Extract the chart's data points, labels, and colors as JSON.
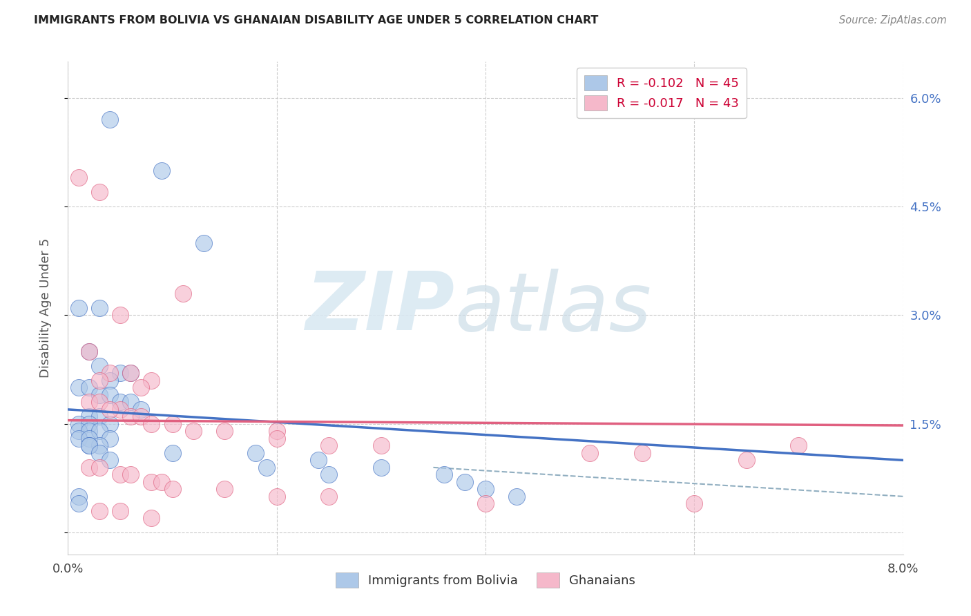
{
  "title": "IMMIGRANTS FROM BOLIVIA VS GHANAIAN DISABILITY AGE UNDER 5 CORRELATION CHART",
  "source": "Source: ZipAtlas.com",
  "ylabel": "Disability Age Under 5",
  "xlim": [
    0.0,
    0.08
  ],
  "ylim": [
    -0.003,
    0.065
  ],
  "xticks": [
    0.0,
    0.02,
    0.04,
    0.06,
    0.08
  ],
  "xticklabels": [
    "0.0%",
    "",
    "",
    "",
    "8.0%"
  ],
  "yticks_right": [
    0.0,
    0.015,
    0.03,
    0.045,
    0.06
  ],
  "yticklabels_right": [
    "",
    "1.5%",
    "3.0%",
    "4.5%",
    "6.0%"
  ],
  "legend_r1": "R = -0.102",
  "legend_n1": "N = 45",
  "legend_r2": "R = -0.017",
  "legend_n2": "N = 43",
  "color_bolivia": "#adc8e8",
  "color_ghana": "#f5b8ca",
  "color_bolivia_line": "#4472c4",
  "color_ghana_line": "#e06080",
  "color_dashed": "#90aec0",
  "background": "#ffffff",
  "bolivia_x": [
    0.004,
    0.009,
    0.013,
    0.001,
    0.003,
    0.002,
    0.003,
    0.005,
    0.006,
    0.004,
    0.001,
    0.002,
    0.003,
    0.004,
    0.005,
    0.006,
    0.007,
    0.002,
    0.003,
    0.004,
    0.001,
    0.002,
    0.001,
    0.002,
    0.003,
    0.004,
    0.001,
    0.002,
    0.003,
    0.002,
    0.01,
    0.018,
    0.024,
    0.03,
    0.036,
    0.002,
    0.003,
    0.004,
    0.001,
    0.001,
    0.019,
    0.025,
    0.038,
    0.04,
    0.043
  ],
  "bolivia_y": [
    0.057,
    0.05,
    0.04,
    0.031,
    0.031,
    0.025,
    0.023,
    0.022,
    0.022,
    0.021,
    0.02,
    0.02,
    0.019,
    0.019,
    0.018,
    0.018,
    0.017,
    0.016,
    0.016,
    0.015,
    0.015,
    0.015,
    0.014,
    0.014,
    0.014,
    0.013,
    0.013,
    0.013,
    0.012,
    0.012,
    0.011,
    0.011,
    0.01,
    0.009,
    0.008,
    0.012,
    0.011,
    0.01,
    0.005,
    0.004,
    0.009,
    0.008,
    0.007,
    0.006,
    0.005
  ],
  "ghana_x": [
    0.001,
    0.003,
    0.011,
    0.005,
    0.002,
    0.004,
    0.006,
    0.008,
    0.003,
    0.007,
    0.002,
    0.003,
    0.005,
    0.004,
    0.006,
    0.007,
    0.008,
    0.01,
    0.015,
    0.02,
    0.012,
    0.02,
    0.025,
    0.03,
    0.05,
    0.055,
    0.065,
    0.002,
    0.003,
    0.005,
    0.006,
    0.008,
    0.009,
    0.01,
    0.015,
    0.02,
    0.025,
    0.04,
    0.06,
    0.07,
    0.003,
    0.005,
    0.008
  ],
  "ghana_y": [
    0.049,
    0.047,
    0.033,
    0.03,
    0.025,
    0.022,
    0.022,
    0.021,
    0.021,
    0.02,
    0.018,
    0.018,
    0.017,
    0.017,
    0.016,
    0.016,
    0.015,
    0.015,
    0.014,
    0.014,
    0.014,
    0.013,
    0.012,
    0.012,
    0.011,
    0.011,
    0.01,
    0.009,
    0.009,
    0.008,
    0.008,
    0.007,
    0.007,
    0.006,
    0.006,
    0.005,
    0.005,
    0.004,
    0.004,
    0.012,
    0.003,
    0.003,
    0.002
  ],
  "blue_line_x": [
    0.0,
    0.08
  ],
  "blue_line_y": [
    0.017,
    0.01
  ],
  "pink_line_x": [
    0.0,
    0.08
  ],
  "pink_line_y": [
    0.0155,
    0.0148
  ],
  "dashed_line_x": [
    0.035,
    0.08
  ],
  "dashed_line_y": [
    0.009,
    0.005
  ]
}
